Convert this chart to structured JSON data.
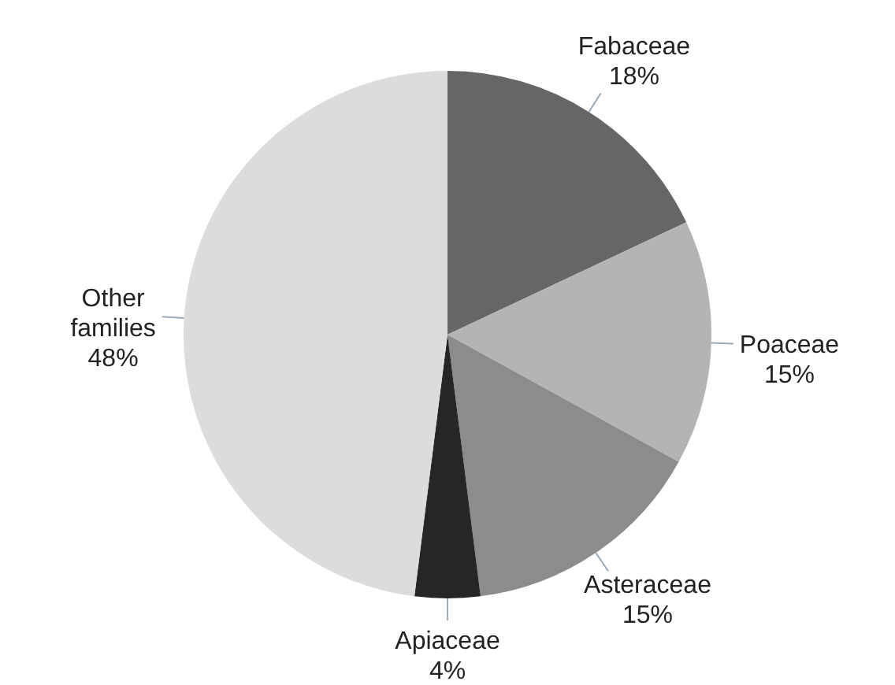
{
  "chart_data": {
    "type": "pie",
    "categories": [
      "Fabaceae",
      "Poaceae",
      "Asteraceae",
      "Apiaceae",
      "Other families"
    ],
    "values": [
      18,
      15,
      15,
      4,
      48
    ],
    "colors": [
      "#666666",
      "#b4b4b4",
      "#8c8c8c",
      "#262626",
      "#dcdcdc"
    ],
    "value_labels": [
      "18%",
      "15%",
      "15%",
      "4%",
      "48%"
    ],
    "legend": false
  }
}
